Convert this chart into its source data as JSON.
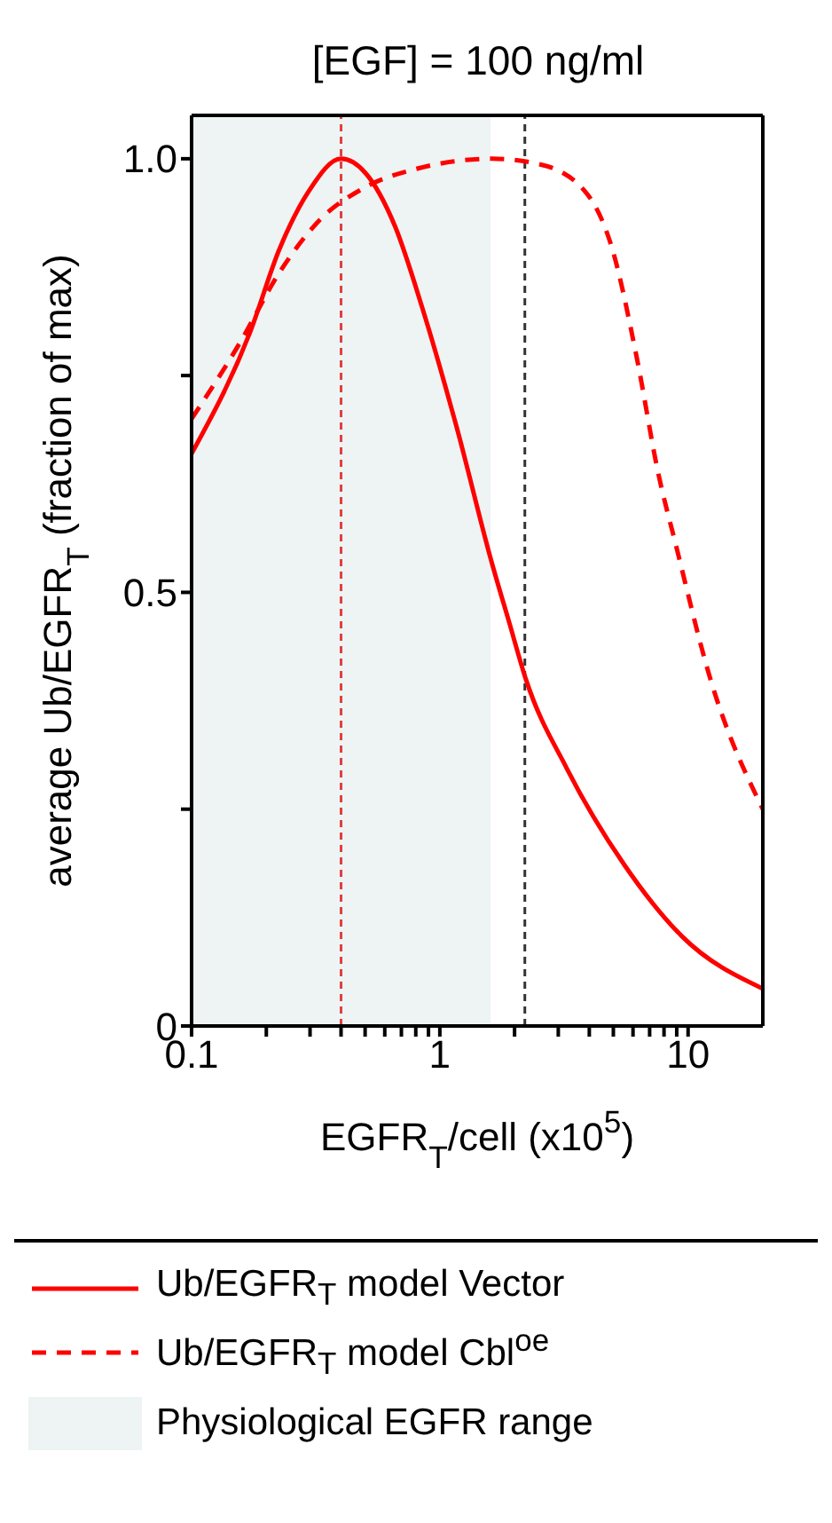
{
  "chart_data": {
    "type": "line",
    "title": "[EGF] = 100 ng/ml",
    "xlabel": "EGFR$_{T}$/cell (x10$^{5}$)",
    "ylabel": "average Ub/EGFR$_{T}$ (fraction of max)",
    "log": "x",
    "xlim": [
      0.1,
      20
    ],
    "xticks": [
      0.1,
      {
        "value": 0.2,
        "label": null
      },
      {
        "value": 0.3,
        "label": null
      },
      {
        "value": 0.4,
        "label": null
      },
      {
        "value": 0.5,
        "label": null
      },
      {
        "value": 0.6,
        "label": null
      },
      {
        "value": 0.7,
        "label": null
      },
      {
        "value": 0.8,
        "label": null
      },
      {
        "value": 0.9,
        "label": null
      },
      1,
      {
        "value": 2,
        "label": null
      },
      {
        "value": 3,
        "label": null
      },
      {
        "value": 4,
        "label": null
      },
      {
        "value": 5,
        "label": null
      },
      {
        "value": 6,
        "label": null
      },
      {
        "value": 7,
        "label": null
      },
      {
        "value": 8,
        "label": null
      },
      {
        "value": 9,
        "label": null
      },
      10
    ],
    "ylim": [
      0,
      1.05
    ],
    "yticks": [
      0,
      {
        "value": 0.25,
        "label": null
      },
      0.5,
      {
        "value": 0.75,
        "label": null
      },
      {
        "value": 1.0,
        "label": "1.0"
      }
    ],
    "marker": "none",
    "legend": "bottom",
    "series": [
      {
        "name": "Ub/EGFR$_{T}$ model Vector",
        "color": "#ff0000",
        "line_style": "solid",
        "x": [
          0.1,
          0.172,
          0.226,
          0.297,
          0.4,
          0.5,
          0.66,
          0.85,
          1.17,
          1.62,
          1.9,
          2.22,
          3.26,
          5.53,
          9.4,
          20
        ],
        "values": [
          0.66,
          0.8,
          0.896,
          0.963,
          1.0,
          0.984,
          0.922,
          0.828,
          0.69,
          0.534,
          0.466,
          0.4,
          0.296,
          0.186,
          0.104,
          0.043
        ]
      },
      {
        "name": "Ub/EGFR$_{T}$ model Cbl$^{oe}$",
        "color": "#ff0000",
        "line_style": "dashed",
        "x": [
          0.1,
          0.156,
          0.226,
          0.33,
          0.5,
          0.85,
          1.62,
          2.49,
          3.83,
          4.95,
          6.19,
          7.6,
          8.94,
          12.3,
          20
        ],
        "values": [
          0.7,
          0.787,
          0.869,
          0.93,
          0.967,
          0.99,
          1.0,
          0.994,
          0.963,
          0.896,
          0.773,
          0.636,
          0.554,
          0.4,
          0.25
        ]
      }
    ],
    "ref_lines": [
      {
        "axis": "x",
        "value": 0.4,
        "color": "#e04040",
        "line_style": "dashed"
      },
      {
        "axis": "x",
        "value": 2.2,
        "color": "#333333",
        "line_style": "dashed"
      }
    ],
    "bands": [
      {
        "axis": "x",
        "from": 0.1,
        "to": 1.6,
        "label": "Physiological EGFR range",
        "color": "#eef3f3"
      }
    ]
  }
}
